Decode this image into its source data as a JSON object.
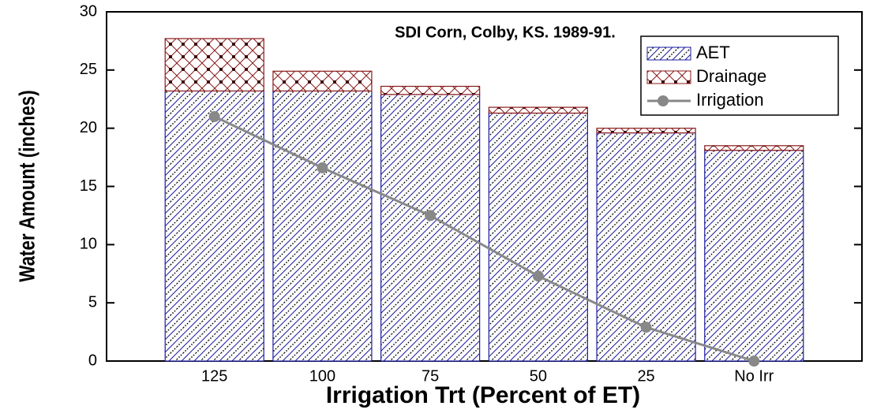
{
  "chart_data": {
    "type": "bar",
    "stacked": true,
    "title": "SDI Corn, Colby, KS. 1989-91.",
    "x_label": "Irrigation Trt (Percent of ET)",
    "y_label": "Water Amount (inches)",
    "categories": [
      "125",
      "100",
      "75",
      "50",
      "25",
      "No Irr"
    ],
    "series": [
      {
        "name": "AET",
        "color": "#1a1aa0",
        "values": [
          23.2,
          23.2,
          22.9,
          21.3,
          19.6,
          18.1
        ]
      },
      {
        "name": "Drainage",
        "color": "#8b1a1a",
        "values": [
          4.5,
          1.7,
          0.7,
          0.5,
          0.4,
          0.4
        ]
      },
      {
        "name": "Irrigation",
        "type": "line",
        "color": "#888888",
        "values": [
          21.0,
          16.6,
          12.5,
          7.3,
          2.9,
          0
        ]
      }
    ],
    "ylim": [
      0,
      30
    ],
    "yticks": [
      0,
      5,
      10,
      15,
      20,
      25,
      30
    ],
    "legend": "upper right"
  }
}
